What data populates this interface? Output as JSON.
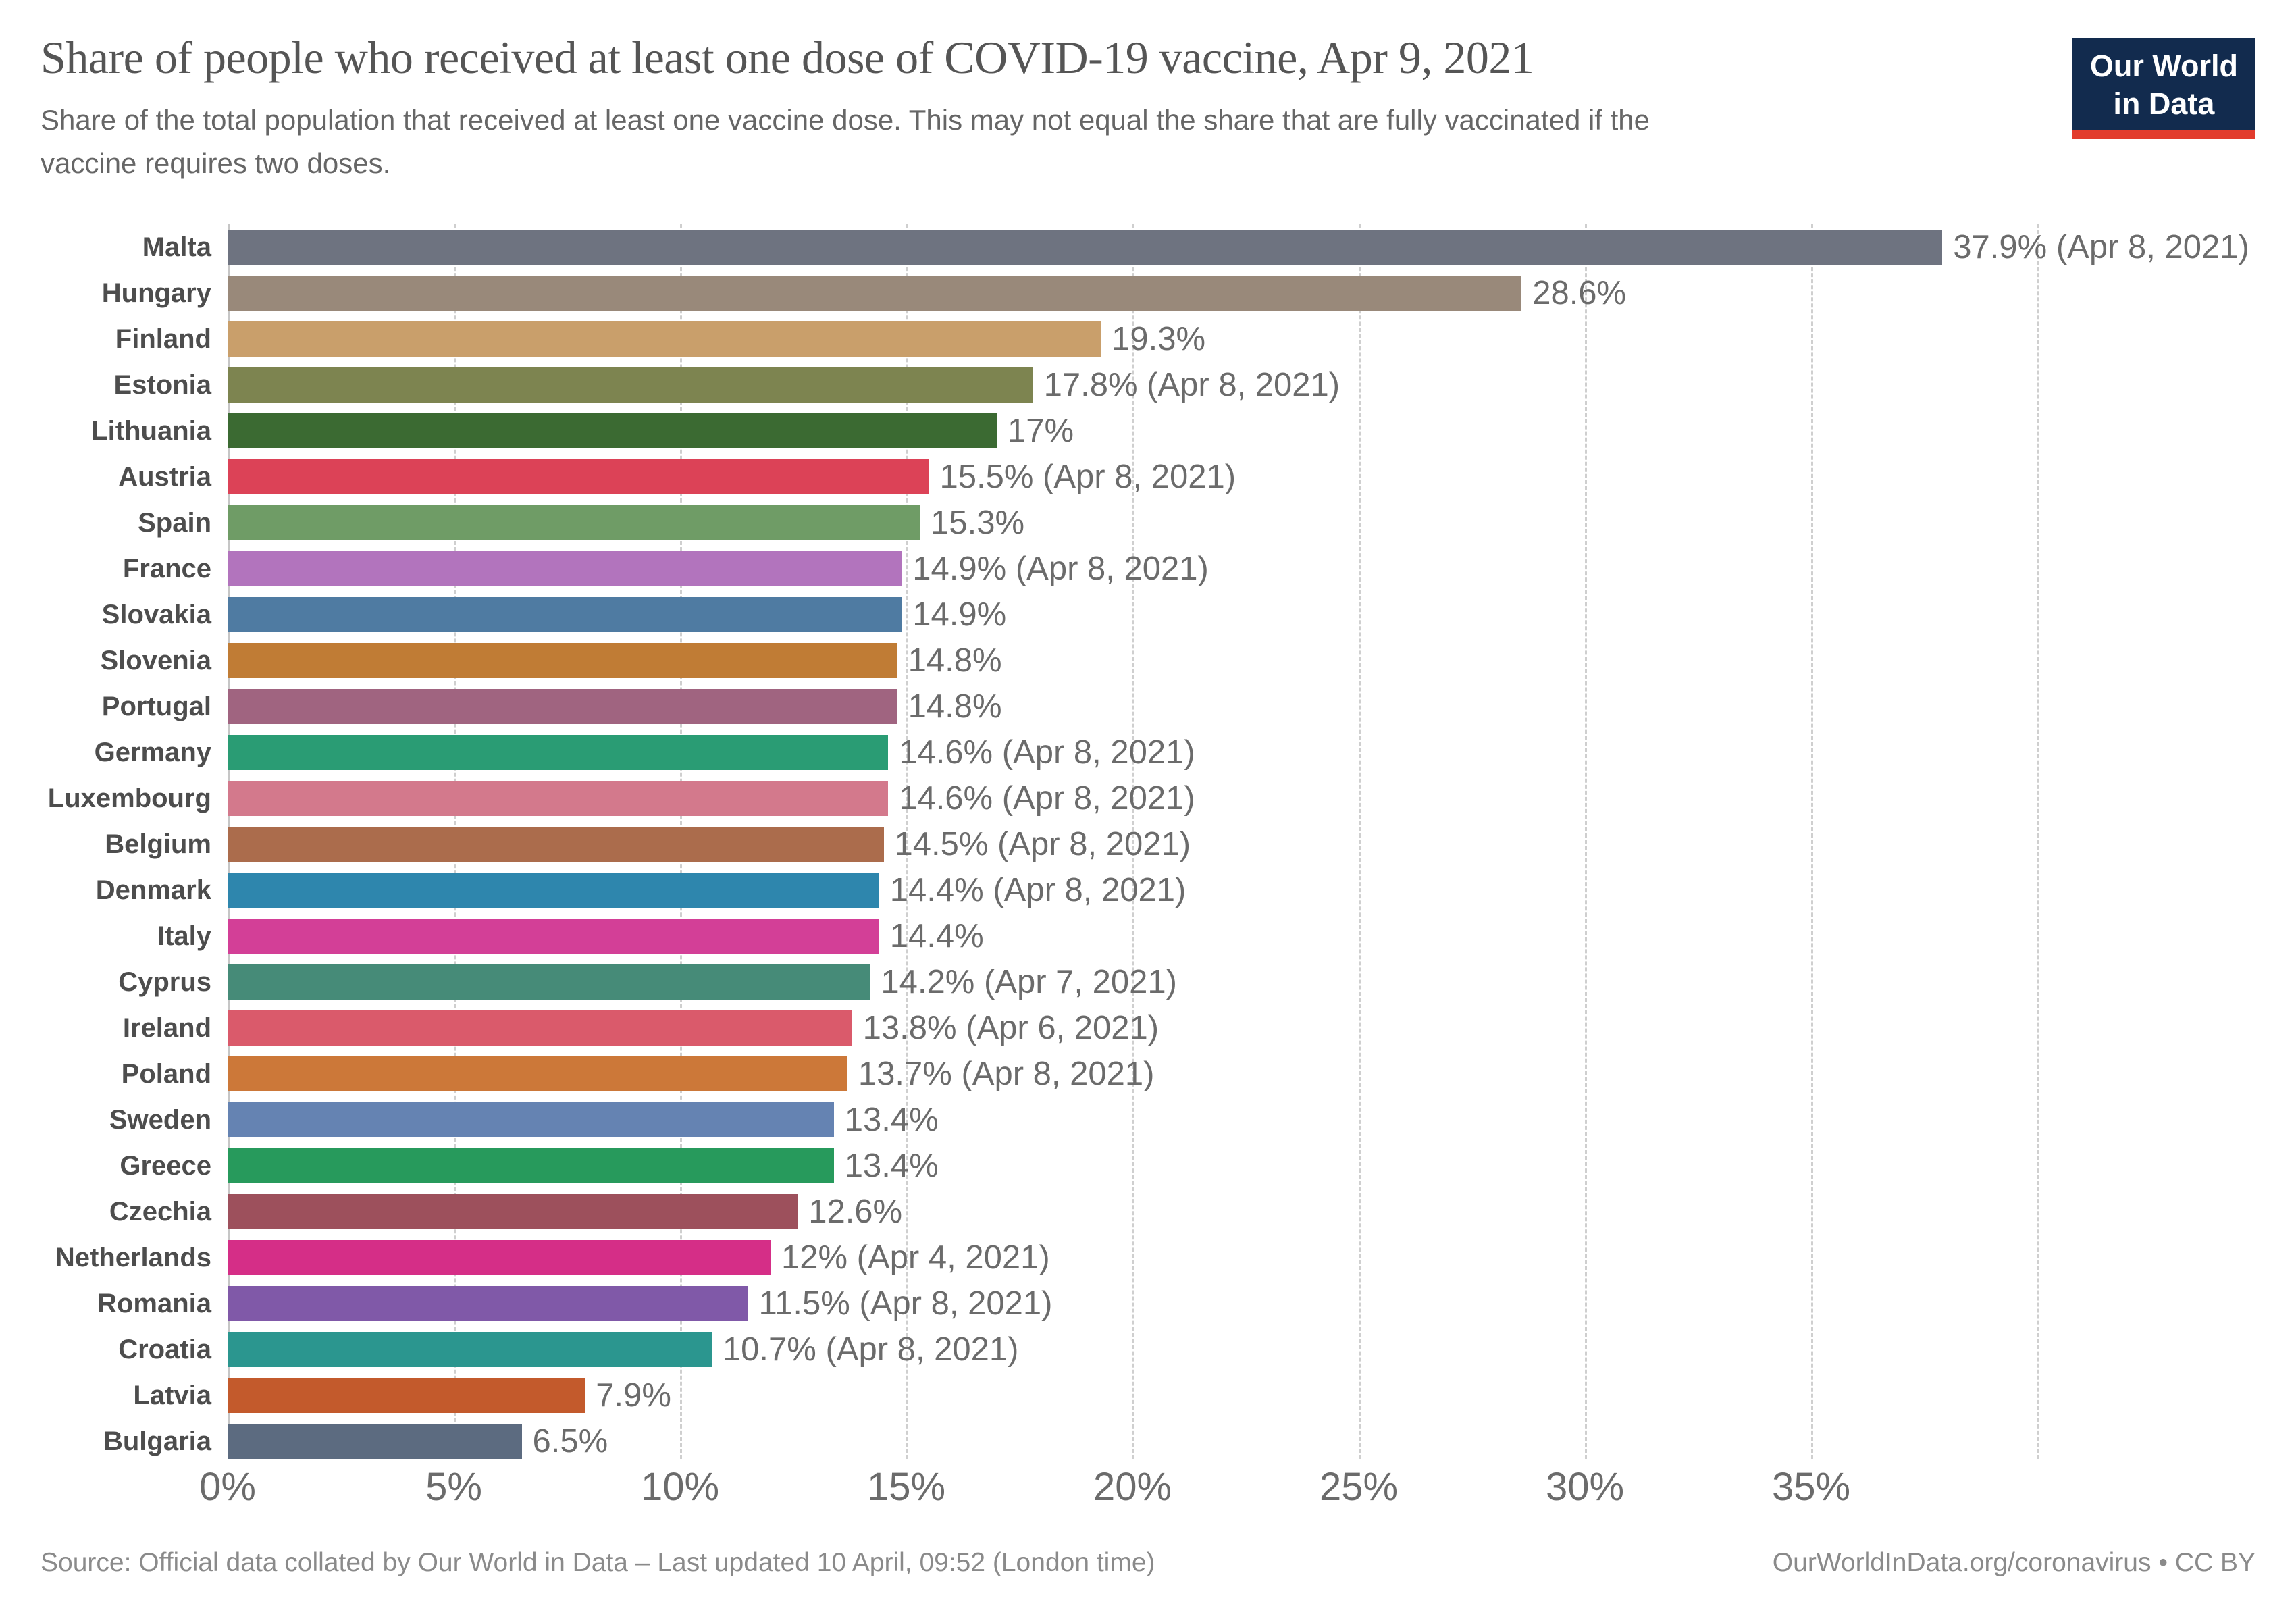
{
  "header": {
    "title": "Share of people who received at least one dose of COVID-19 vaccine, Apr 9, 2021",
    "subtitle_line1": "Share of the total population that received at least one vaccine dose. This may not equal the share that are fully vaccinated if the",
    "subtitle_line2": "vaccine requires two doses.",
    "logo_line1": "Our World",
    "logo_line2": "in Data",
    "logo_bg_color": "#122b4e",
    "logo_accent_color": "#e23c2d"
  },
  "chart_data": {
    "type": "bar",
    "orientation": "horizontal",
    "title": "Share of people who received at least one dose of COVID-19 vaccine, Apr 9, 2021",
    "xlabel": "",
    "ylabel": "",
    "unit": "%",
    "xlim": [
      0,
      40
    ],
    "grid": "dashed-vertical-every-5",
    "tick_labels": [
      "0%",
      "5%",
      "10%",
      "15%",
      "20%",
      "25%",
      "30%",
      "35%"
    ],
    "tick_values": [
      0,
      5,
      10,
      15,
      20,
      25,
      30,
      35
    ],
    "gridline_values": [
      0,
      5,
      10,
      15,
      20,
      25,
      30,
      35,
      40
    ],
    "series": [
      {
        "country": "Malta",
        "value": 37.9,
        "label": "37.9% (Apr 8, 2021)",
        "color": "#6e7380"
      },
      {
        "country": "Hungary",
        "value": 28.6,
        "label": "28.6%",
        "color": "#99897a"
      },
      {
        "country": "Finland",
        "value": 19.3,
        "label": "19.3%",
        "color": "#c99f6b"
      },
      {
        "country": "Estonia",
        "value": 17.8,
        "label": "17.8% (Apr 8, 2021)",
        "color": "#7d8450"
      },
      {
        "country": "Lithuania",
        "value": 17,
        "label": "17%",
        "color": "#3b6a32"
      },
      {
        "country": "Austria",
        "value": 15.5,
        "label": "15.5% (Apr 8, 2021)",
        "color": "#dc4257"
      },
      {
        "country": "Spain",
        "value": 15.3,
        "label": "15.3%",
        "color": "#6f9c66"
      },
      {
        "country": "France",
        "value": 14.9,
        "label": "14.9% (Apr 8, 2021)",
        "color": "#b274bd"
      },
      {
        "country": "Slovakia",
        "value": 14.9,
        "label": "14.9%",
        "color": "#4f7ba2"
      },
      {
        "country": "Slovenia",
        "value": 14.8,
        "label": "14.8%",
        "color": "#c07c35"
      },
      {
        "country": "Portugal",
        "value": 14.8,
        "label": "14.8%",
        "color": "#a06480"
      },
      {
        "country": "Germany",
        "value": 14.6,
        "label": "14.6% (Apr 8, 2021)",
        "color": "#2a9c74"
      },
      {
        "country": "Luxembourg",
        "value": 14.6,
        "label": "14.6% (Apr 8, 2021)",
        "color": "#d3798c"
      },
      {
        "country": "Belgium",
        "value": 14.5,
        "label": "14.5% (Apr 8, 2021)",
        "color": "#ab6c4c"
      },
      {
        "country": "Denmark",
        "value": 14.4,
        "label": "14.4% (Apr 8, 2021)",
        "color": "#2e86ad"
      },
      {
        "country": "Italy",
        "value": 14.4,
        "label": "14.4%",
        "color": "#d33f97"
      },
      {
        "country": "Cyprus",
        "value": 14.2,
        "label": "14.2% (Apr 7, 2021)",
        "color": "#468b78"
      },
      {
        "country": "Ireland",
        "value": 13.8,
        "label": "13.8% (Apr 6, 2021)",
        "color": "#da5a6b"
      },
      {
        "country": "Poland",
        "value": 13.7,
        "label": "13.7% (Apr 8, 2021)",
        "color": "#cc7839"
      },
      {
        "country": "Sweden",
        "value": 13.4,
        "label": "13.4%",
        "color": "#6583b2"
      },
      {
        "country": "Greece",
        "value": 13.4,
        "label": "13.4%",
        "color": "#279a5c"
      },
      {
        "country": "Czechia",
        "value": 12.6,
        "label": "12.6%",
        "color": "#9d505c"
      },
      {
        "country": "Netherlands",
        "value": 12,
        "label": "12% (Apr 4, 2021)",
        "color": "#d52e87"
      },
      {
        "country": "Romania",
        "value": 11.5,
        "label": "11.5% (Apr 8, 2021)",
        "color": "#8059a8"
      },
      {
        "country": "Croatia",
        "value": 10.7,
        "label": "10.7% (Apr 8, 2021)",
        "color": "#2b968f"
      },
      {
        "country": "Latvia",
        "value": 7.9,
        "label": "7.9%",
        "color": "#c35a2c"
      },
      {
        "country": "Bulgaria",
        "value": 6.5,
        "label": "6.5%",
        "color": "#5c6b80"
      }
    ]
  },
  "footer": {
    "source": "Source: Official data collated by Our World in Data – Last updated 10 April, 09:52 (London time)",
    "credit": "OurWorldInData.org/coronavirus • CC BY"
  }
}
